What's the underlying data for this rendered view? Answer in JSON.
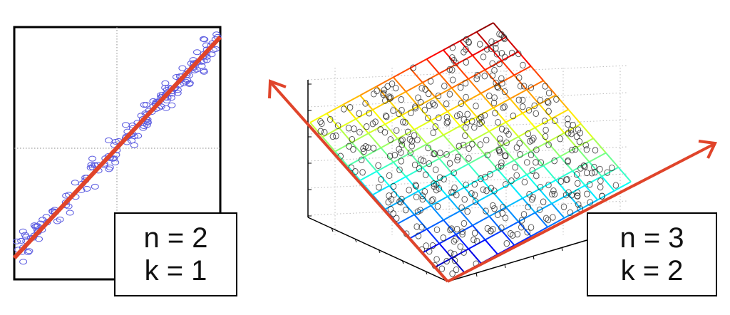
{
  "left_panel": {
    "label_line1": "n = 2",
    "label_line2": "k = 1",
    "point_color": "#5a5ae0",
    "line_color": "#e0442a"
  },
  "right_panel": {
    "label_line1": "n = 3",
    "label_line2": "k = 2",
    "point_color": "#222222",
    "arrow_color": "#e0442a",
    "surface_colormap": "jet"
  }
}
